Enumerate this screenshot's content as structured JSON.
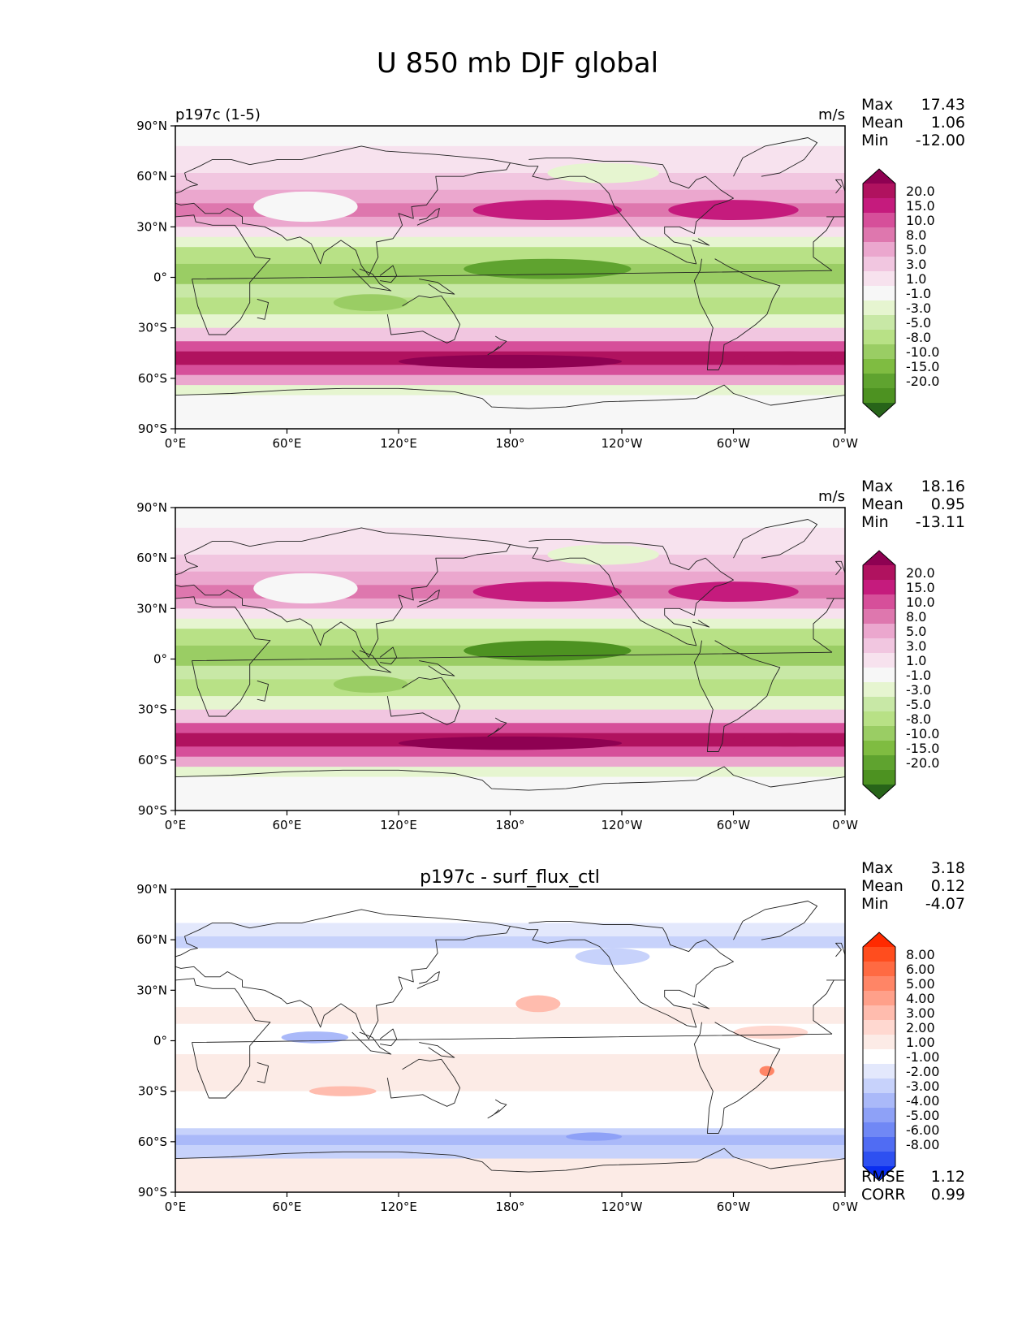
{
  "title": "U 850 mb DJF global",
  "x_ticks": [
    "0°E",
    "60°E",
    "120°E",
    "180°",
    "120°W",
    "60°W",
    "0°W"
  ],
  "y_ticks": [
    "90°N",
    "60°N",
    "30°N",
    "0°",
    "30°S",
    "60°S",
    "90°S"
  ],
  "panels": [
    {
      "left_title": "p197c (1-5)",
      "center_title": "",
      "units": "m/s",
      "stats": {
        "max_label": "Max",
        "max": "17.43",
        "mean_label": "Mean",
        "mean": "1.06",
        "min_label": "Min",
        "min": "-12.00"
      }
    },
    {
      "left_title": "",
      "center_title": "",
      "units": "m/s",
      "stats": {
        "max_label": "Max",
        "max": "18.16",
        "mean_label": "Mean",
        "mean": "0.95",
        "min_label": "Min",
        "min": "-13.11"
      }
    },
    {
      "left_title": "",
      "center_title": "p197c - surf_flux_ctl",
      "units": "",
      "stats": {
        "max_label": "Max",
        "max": "3.18",
        "mean_label": "Mean",
        "mean": "0.12",
        "min_label": "Min",
        "min": "-4.07"
      }
    }
  ],
  "colorbar_field": {
    "labels": [
      "20.0",
      "15.0",
      "10.0",
      "8.0",
      "5.0",
      "3.0",
      "1.0",
      "-1.0",
      "-3.0",
      "-5.0",
      "-8.0",
      "-10.0",
      "-15.0",
      "-20.0"
    ],
    "colors": [
      "#8e0152",
      "#b0125f",
      "#c51b7d",
      "#d64f9a",
      "#de77ae",
      "#eba7ce",
      "#f1c6e0",
      "#f7e2ee",
      "#f7f7f7",
      "#e6f5d0",
      "#c8e8a6",
      "#b8e186",
      "#9acd64",
      "#7fbc41",
      "#5fa32f",
      "#4d9221",
      "#276419"
    ]
  },
  "colorbar_diff": {
    "labels": [
      "8.00",
      "6.00",
      "5.00",
      "4.00",
      "3.00",
      "2.00",
      "1.00",
      "-1.00",
      "-2.00",
      "-3.00",
      "-4.00",
      "-5.00",
      "-6.00",
      "-8.00"
    ],
    "colors": [
      "#ff2a00",
      "#ff4d1e",
      "#ff6a42",
      "#ff8566",
      "#ffa08a",
      "#ffbcae",
      "#ffd8d0",
      "#fcebe6",
      "#ffffff",
      "#e3e8fc",
      "#c7d2fb",
      "#aab9f9",
      "#8ea1f7",
      "#7088f5",
      "#506cf3",
      "#2e50f1",
      "#0a2ef0"
    ]
  },
  "chart_data": [
    {
      "type": "heatmap",
      "subtitle": "p197c (1-5)",
      "units": "m/s",
      "x": [
        "0°E",
        "60°E",
        "120°E",
        "180°",
        "120°W",
        "60°W",
        "0°W"
      ],
      "y": [
        "90°N",
        "60°N",
        "30°N",
        "0°",
        "30°S",
        "60°S",
        "90°S"
      ],
      "xlim": [
        0,
        360
      ],
      "ylim": [
        -90,
        90
      ],
      "contour_levels": [
        -20,
        -15,
        -10,
        -8,
        -5,
        -3,
        -1,
        1,
        3,
        5,
        8,
        10,
        15,
        20
      ],
      "max": 17.43,
      "mean": 1.06,
      "min": -12.0
    },
    {
      "type": "heatmap",
      "units": "m/s",
      "x": [
        "0°E",
        "60°E",
        "120°E",
        "180°",
        "120°W",
        "60°W",
        "0°W"
      ],
      "y": [
        "90°N",
        "60°N",
        "30°N",
        "0°",
        "30°S",
        "60°S",
        "90°S"
      ],
      "xlim": [
        0,
        360
      ],
      "ylim": [
        -90,
        90
      ],
      "contour_levels": [
        -20,
        -15,
        -10,
        -8,
        -5,
        -3,
        -1,
        1,
        3,
        5,
        8,
        10,
        15,
        20
      ],
      "max": 18.16,
      "mean": 0.95,
      "min": -13.11
    },
    {
      "type": "heatmap",
      "title": "p197c - surf_flux_ctl",
      "x": [
        "0°E",
        "60°E",
        "120°E",
        "180°",
        "120°W",
        "60°W",
        "0°W"
      ],
      "y": [
        "90°N",
        "60°N",
        "30°N",
        "0°",
        "30°S",
        "60°S",
        "90°S"
      ],
      "xlim": [
        0,
        360
      ],
      "ylim": [
        -90,
        90
      ],
      "contour_levels": [
        -8,
        -6,
        -5,
        -4,
        -3,
        -2,
        -1,
        1,
        2,
        3,
        4,
        5,
        6,
        8
      ],
      "max": 3.18,
      "mean": 0.12,
      "min": -4.07,
      "rmse": 1.12,
      "corr": 0.99
    }
  ],
  "metrics": {
    "rmse_label": "RMSE",
    "rmse": "1.12",
    "corr_label": "CORR",
    "corr": "0.99"
  }
}
